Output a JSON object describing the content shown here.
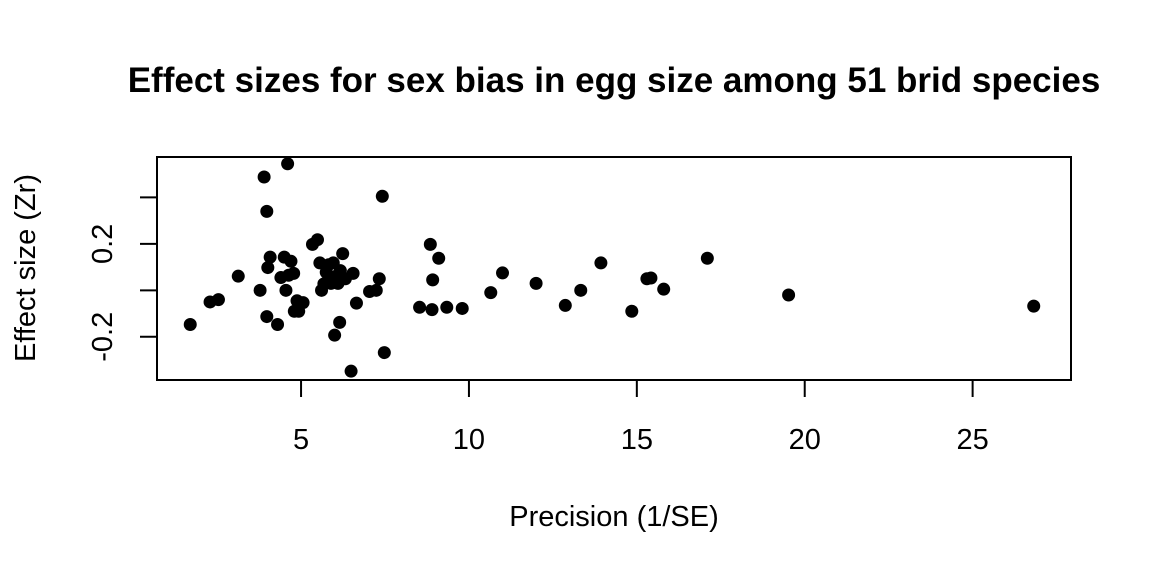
{
  "chart_data": {
    "type": "scatter",
    "title": "Effect sizes for sex bias in egg size among 51 brid species",
    "xlabel": "Precision (1/SE)",
    "ylabel": "Effect size (Zr)",
    "xlim": [
      0.71,
      27.93
    ],
    "ylim": [
      -0.386,
      0.574
    ],
    "x_ticks": [
      5,
      10,
      15,
      20,
      25
    ],
    "x_tick_labels": [
      "5",
      "10",
      "15",
      "20",
      "25"
    ],
    "y_ticks": [
      -0.2,
      0.0,
      0.2,
      0.4
    ],
    "y_tick_labels": [
      "-0.2",
      "",
      "0.2",
      ""
    ],
    "grid": false,
    "legend": "none",
    "marker": "filled-circle",
    "color": "#000000",
    "points": [
      {
        "x": 1.7,
        "y": -0.147
      },
      {
        "x": 2.29,
        "y": -0.05
      },
      {
        "x": 2.54,
        "y": -0.04
      },
      {
        "x": 3.13,
        "y": 0.061
      },
      {
        "x": 3.78,
        "y": 0.0
      },
      {
        "x": 3.9,
        "y": 0.488
      },
      {
        "x": 3.98,
        "y": 0.34
      },
      {
        "x": 3.98,
        "y": -0.113
      },
      {
        "x": 4.01,
        "y": 0.098
      },
      {
        "x": 4.08,
        "y": 0.143
      },
      {
        "x": 4.3,
        "y": -0.147
      },
      {
        "x": 4.4,
        "y": 0.055
      },
      {
        "x": 4.5,
        "y": 0.143
      },
      {
        "x": 4.55,
        "y": 0.0
      },
      {
        "x": 4.6,
        "y": 0.545
      },
      {
        "x": 4.63,
        "y": 0.065
      },
      {
        "x": 4.7,
        "y": 0.125
      },
      {
        "x": 4.78,
        "y": 0.073
      },
      {
        "x": 4.8,
        "y": -0.09
      },
      {
        "x": 4.88,
        "y": -0.045
      },
      {
        "x": 4.93,
        "y": -0.09
      },
      {
        "x": 5.06,
        "y": -0.053
      },
      {
        "x": 5.34,
        "y": 0.198
      },
      {
        "x": 5.49,
        "y": 0.218
      },
      {
        "x": 5.56,
        "y": 0.118
      },
      {
        "x": 5.61,
        "y": 0.0
      },
      {
        "x": 5.68,
        "y": 0.028
      },
      {
        "x": 5.75,
        "y": 0.078
      },
      {
        "x": 5.82,
        "y": 0.11
      },
      {
        "x": 5.89,
        "y": 0.03
      },
      {
        "x": 5.96,
        "y": 0.118
      },
      {
        "x": 6.0,
        "y": -0.193
      },
      {
        "x": 6.03,
        "y": 0.06
      },
      {
        "x": 6.1,
        "y": 0.03
      },
      {
        "x": 6.15,
        "y": -0.138
      },
      {
        "x": 6.17,
        "y": 0.085
      },
      {
        "x": 6.24,
        "y": 0.158
      },
      {
        "x": 6.32,
        "y": 0.05
      },
      {
        "x": 6.49,
        "y": -0.348
      },
      {
        "x": 6.55,
        "y": 0.073
      },
      {
        "x": 6.65,
        "y": -0.055
      },
      {
        "x": 7.04,
        "y": -0.005
      },
      {
        "x": 7.24,
        "y": 0.0
      },
      {
        "x": 7.33,
        "y": 0.05
      },
      {
        "x": 7.42,
        "y": 0.405
      },
      {
        "x": 7.48,
        "y": -0.268
      },
      {
        "x": 8.53,
        "y": -0.073
      },
      {
        "x": 8.85,
        "y": 0.198
      },
      {
        "x": 8.9,
        "y": -0.083
      },
      {
        "x": 8.92,
        "y": 0.045
      },
      {
        "x": 9.1,
        "y": 0.138
      },
      {
        "x": 9.34,
        "y": -0.073
      },
      {
        "x": 9.8,
        "y": -0.078
      },
      {
        "x": 10.65,
        "y": -0.01
      },
      {
        "x": 11.0,
        "y": 0.075
      },
      {
        "x": 12.0,
        "y": 0.03
      },
      {
        "x": 12.87,
        "y": -0.065
      },
      {
        "x": 13.33,
        "y": 0.0
      },
      {
        "x": 13.93,
        "y": 0.118
      },
      {
        "x": 14.85,
        "y": -0.09
      },
      {
        "x": 15.3,
        "y": 0.05
      },
      {
        "x": 15.42,
        "y": 0.053
      },
      {
        "x": 15.8,
        "y": 0.005
      },
      {
        "x": 17.1,
        "y": 0.138
      },
      {
        "x": 19.52,
        "y": -0.02
      },
      {
        "x": 26.82,
        "y": -0.068
      }
    ]
  }
}
